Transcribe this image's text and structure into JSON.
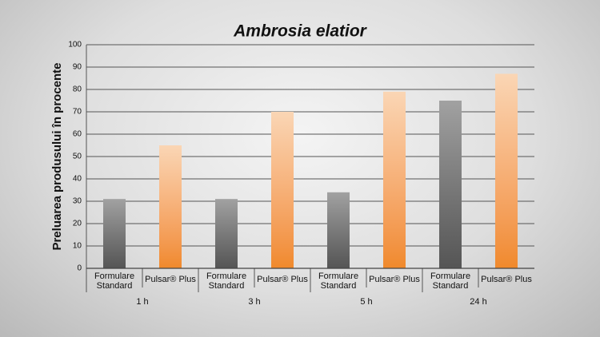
{
  "chart_data": {
    "type": "bar",
    "title": "Ambrosia elatior",
    "y_label": "Preluarea produsului în procente",
    "categories": [
      "1 h",
      "3 h",
      "5 h",
      "24 h"
    ],
    "series": [
      {
        "name": "Formulare Standard",
        "color": "#555555",
        "values": [
          31,
          31,
          34,
          75
        ]
      },
      {
        "name": "Pulsar® Plus",
        "color": "#f0892a",
        "values": [
          55,
          70,
          79,
          87
        ]
      }
    ],
    "ylim": [
      0,
      100
    ],
    "yticks": [
      0,
      10,
      20,
      30,
      40,
      50,
      60,
      70,
      80,
      90,
      100
    ],
    "grid": true
  }
}
